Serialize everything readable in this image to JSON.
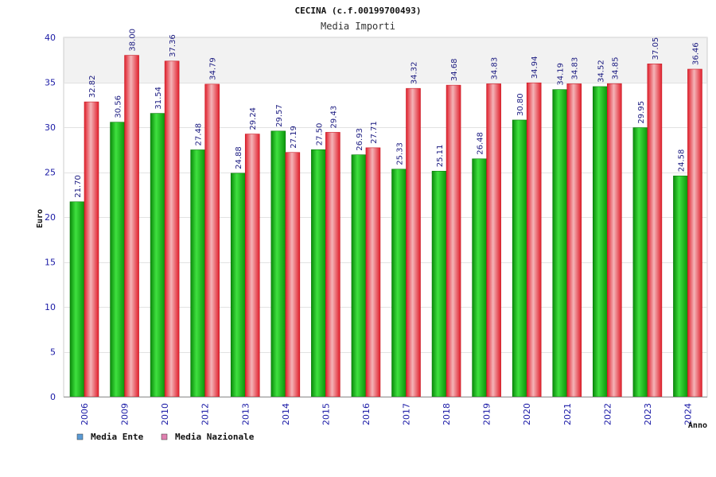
{
  "chart_data": {
    "type": "bar",
    "title": "CECINA (c.f.00199700493)",
    "subtitle": "Media Importi",
    "xlabel": "Anno",
    "ylabel": "Euro",
    "ylim": [
      0,
      40
    ],
    "yticks": [
      0,
      5,
      10,
      15,
      20,
      25,
      30,
      35,
      40
    ],
    "grid": true,
    "legend_position": "bottom-left",
    "categories": [
      "2006",
      "2009",
      "2010",
      "2012",
      "2013",
      "2014",
      "2015",
      "2016",
      "2017",
      "2018",
      "2019",
      "2020",
      "2021",
      "2022",
      "2023",
      "2024"
    ],
    "series": [
      {
        "name": "Media Ente",
        "color": "#22bb22",
        "legend_color": "#5b9bd5",
        "values": [
          21.7,
          30.56,
          31.54,
          27.48,
          24.88,
          29.57,
          27.5,
          26.93,
          25.33,
          25.11,
          26.48,
          30.8,
          34.19,
          34.52,
          29.95,
          24.58
        ],
        "labels": [
          "21.70",
          "30.56",
          "31.54",
          "27.48",
          "24.88",
          "29.57",
          "27.50",
          "26.93",
          "25.33",
          "25.11",
          "26.48",
          "30.80",
          "34.19",
          "34.52",
          "29.95",
          "24.58"
        ]
      },
      {
        "name": "Media Nazionale",
        "color": "#e8303a",
        "legend_color": "#e080b0",
        "values": [
          32.82,
          38.0,
          37.36,
          34.79,
          29.24,
          27.19,
          29.43,
          27.71,
          34.32,
          34.68,
          34.83,
          34.94,
          34.83,
          34.85,
          37.05,
          36.46
        ],
        "labels": [
          "32.82",
          "38.00",
          "37.36",
          "34.79",
          "29.24",
          "27.19",
          "29.43",
          "27.71",
          "34.32",
          "34.68",
          "34.83",
          "34.94",
          "34.83",
          "34.85",
          "37.05",
          "36.46"
        ]
      }
    ]
  }
}
